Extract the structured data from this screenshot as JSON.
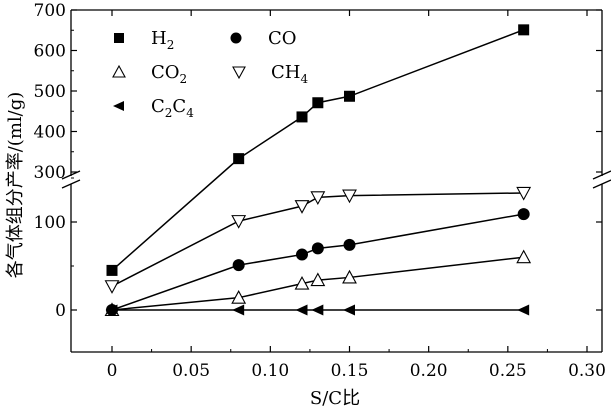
{
  "chart_data": {
    "type": "line",
    "xlabel": "S/C比",
    "ylabel": "各气体组分产率/(ml/g)",
    "xlim": [
      -0.03,
      0.3
    ],
    "x_ticks": [
      "0",
      "0.05",
      "0.10",
      "0.15",
      "0.20",
      "0.25",
      "0.30"
    ],
    "y_ticks_lower": [
      "0",
      "100"
    ],
    "y_ticks_upper": [
      "300",
      "400",
      "500",
      "600",
      "700"
    ],
    "y_axis_break": "broken axis between 150 and 280",
    "grid": false,
    "legend_position": "top-left inside plot",
    "series": [
      {
        "name": "H2",
        "label_main": "H",
        "label_sub": "2",
        "marker": "filled-square",
        "x": [
          0,
          0.08,
          0.12,
          0.13,
          0.15,
          0.26
        ],
        "y": [
          45,
          333,
          436,
          471,
          487,
          651
        ]
      },
      {
        "name": "CO",
        "label_main": "CO",
        "label_sub": "",
        "marker": "filled-circle",
        "x": [
          0,
          0.08,
          0.12,
          0.13,
          0.15,
          0.26
        ],
        "y": [
          0,
          51,
          63,
          70,
          74,
          109
        ]
      },
      {
        "name": "CO2",
        "label_main": "CO",
        "label_sub": "2",
        "marker": "open-triangle-up",
        "x": [
          0,
          0.08,
          0.12,
          0.13,
          0.15,
          0.26
        ],
        "y": [
          0,
          14,
          30,
          34,
          37,
          60
        ]
      },
      {
        "name": "CH4",
        "label_main": "CH",
        "label_sub": "4",
        "marker": "open-triangle-down",
        "x": [
          0,
          0.08,
          0.12,
          0.13,
          0.15,
          0.26
        ],
        "y": [
          27,
          101,
          118,
          128,
          130,
          133
        ]
      },
      {
        "name": "C2C4",
        "label_main": "C",
        "label_sub": "2",
        "label_main2": "C",
        "label_sub2": "4",
        "marker": "filled-triangle-left",
        "x": [
          0,
          0.08,
          0.12,
          0.13,
          0.15,
          0.26
        ],
        "y": [
          0,
          0,
          0,
          0,
          0,
          0
        ]
      }
    ]
  }
}
